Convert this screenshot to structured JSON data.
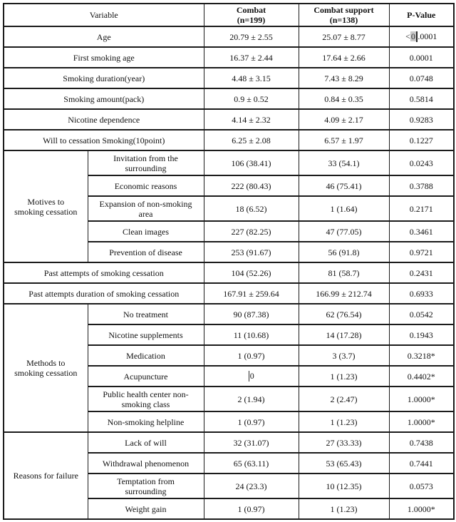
{
  "table": {
    "colors": {
      "red": "#e8271e",
      "text": "#111111",
      "border": "#1b1b1b",
      "selection_bg": "#c9c9c9"
    },
    "header": {
      "variable": "Variable",
      "combat": "Combat\n(n=199)",
      "combat_support": "Combat support\n(n=138)",
      "p_value": "P-Value"
    },
    "rows": [
      {
        "label": "Age",
        "combat": "20.79 ± 2.55",
        "support": "25.07 ± 8.77",
        "p": {
          "color": "red",
          "parts": [
            {
              "t": "<"
            },
            {
              "t": "0",
              "sel": true
            },
            {
              "caret": true
            },
            {
              "t": ".0001"
            }
          ]
        }
      },
      {
        "label": "First smoking age",
        "combat": "16.37 ± 2.44",
        "support": "17.64 ± 2.66",
        "p": "0.0001",
        "p_red": true
      },
      {
        "label": "Smoking duration(year)",
        "combat": "4.48 ± 3.15",
        "support": "7.43 ± 8.29",
        "p": "0.0748"
      },
      {
        "label": "Smoking amount(pack)",
        "combat": "0.9 ± 0.52",
        "support": "0.84 ± 0.35",
        "p": "0.5814"
      },
      {
        "label": "Nicotine dependence",
        "combat": "4.14 ± 2.32",
        "support": "4.09 ± 2.17",
        "p": "0.9283"
      },
      {
        "label": "Will to cessation Smoking(10point)",
        "combat": "6.25 ± 2.08",
        "support": "6.57 ± 1.97",
        "p": "0.1227"
      },
      {
        "group": {
          "label": "Motives to\nsmoking cessation",
          "span": 5
        },
        "label": "Invitation from the\nsurrounding",
        "tall": true,
        "combat": "106 (38.41)",
        "support": "33 (54.1)",
        "p": "0.0243",
        "p_red": true
      },
      {
        "label": "Economic reasons",
        "combat": "222 (80.43)",
        "support": "46 (75.41)",
        "p": "0.3788"
      },
      {
        "label": "Expansion of non-smoking\narea",
        "tall": true,
        "combat": "18 (6.52)",
        "support": "1 (1.64)",
        "p": "0.2171"
      },
      {
        "label": "Clean images",
        "combat": "227 (82.25)",
        "support": "47 (77.05)",
        "p": "0.3461"
      },
      {
        "label": "Prevention of disease",
        "combat": "253 (91.67)",
        "support": "56 (91.8)",
        "p": "0.9721"
      },
      {
        "label": "Past attempts of smoking cessation",
        "combat": "104 (52.26)",
        "support": "81 (58.7)",
        "p": "0.2431"
      },
      {
        "label": "Past attempts duration of smoking cessation",
        "combat": "167.91 ± 259.64",
        "support": "166.99 ± 212.74",
        "p": "0.6933"
      },
      {
        "group": {
          "label": "Methods to\nsmoking cessation",
          "span": 6
        },
        "label": "No treatment",
        "combat": "90 (87.38)",
        "support": "62 (76.54)",
        "p": "0.0542"
      },
      {
        "label": "Nicotine supplements",
        "combat": "11 (10.68)",
        "support": "14 (17.28)",
        "p": "0.1943"
      },
      {
        "label": "Medication",
        "combat": "1 (0.97)",
        "support": "3 (3.7)",
        "p": "0.3218*"
      },
      {
        "label": "Acupuncture",
        "combat": {
          "parts": [
            {
              "caret": true
            },
            {
              "t": "0"
            }
          ]
        },
        "support": "1 (1.23)",
        "p": "0.4402*"
      },
      {
        "label": "Public health center non-\nsmoking class",
        "tall": true,
        "combat": "2 (1.94)",
        "support": "2 (2.47)",
        "p": "1.0000*"
      },
      {
        "label": "Non-smoking helpline",
        "combat": "1 (0.97)",
        "support": "1 (1.23)",
        "p": "1.0000*"
      },
      {
        "group": {
          "label": "Reasons for failure",
          "span": 4
        },
        "label": "Lack of will",
        "combat": "32 (31.07)",
        "support": "27 (33.33)",
        "p": "0.7438"
      },
      {
        "label": "Withdrawal phenomenon",
        "combat": "65 (63.11)",
        "support": "53 (65.43)",
        "p": "0.7441"
      },
      {
        "label": "Temptation from\nsurrounding",
        "tall": true,
        "combat": "24 (23.3)",
        "support": "10 (12.35)",
        "p": "0.0573"
      },
      {
        "label": "Weight gain",
        "combat": "1 (0.97)",
        "support": "1 (1.23)",
        "p": "1.0000*"
      }
    ]
  }
}
